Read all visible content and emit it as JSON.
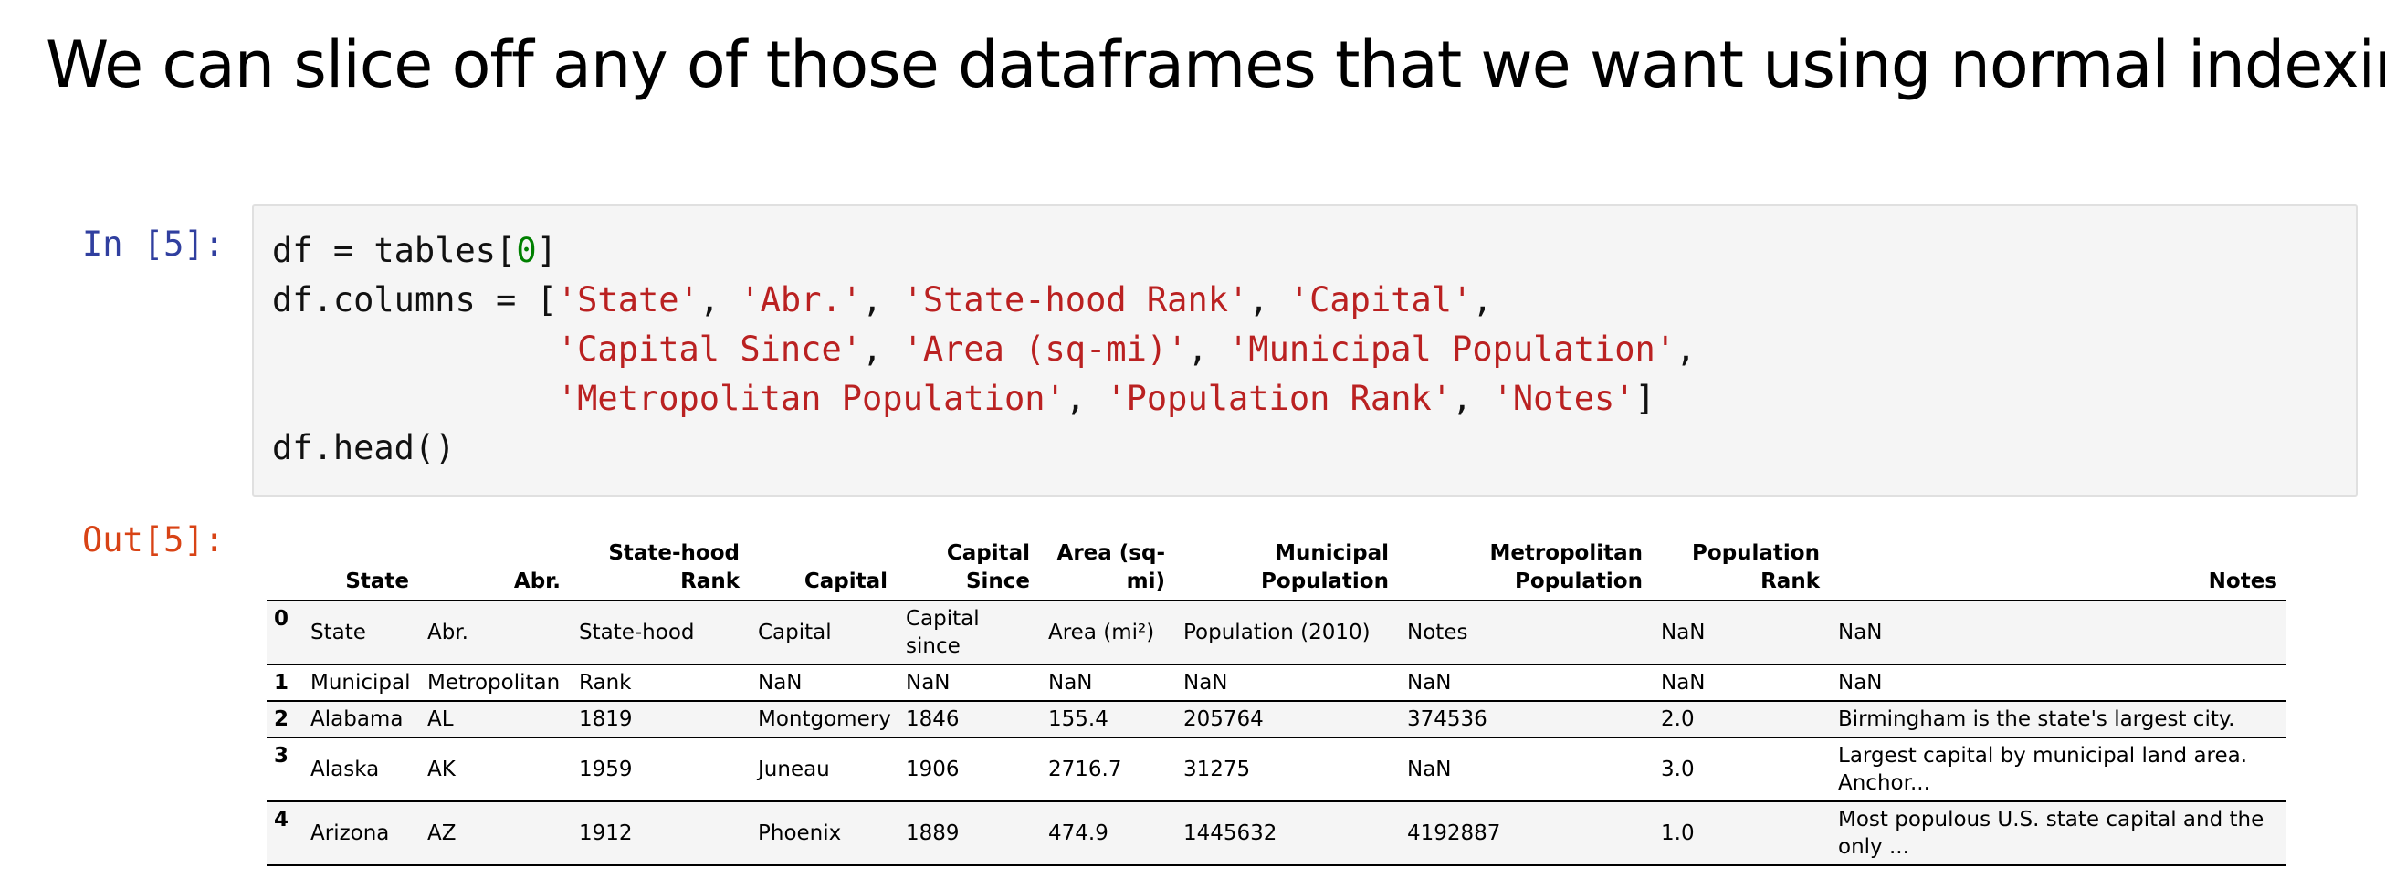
{
  "heading": "We can slice off any of those dataframes that we want using normal indexing.",
  "input_prompt": "In [5]:",
  "output_prompt": "Out[5]:",
  "code": {
    "line1_a": "df = tables[",
    "line1_num": "0",
    "line1_b": "]",
    "line2_a": "df.columns = [",
    "s_state": "'State'",
    "s_abr": "'Abr.'",
    "s_statehood": "'State-hood Rank'",
    "s_capital": "'Capital'",
    "s_capsince": "'Capital Since'",
    "s_area": "'Area (sq-mi)'",
    "s_munpop": "'Municipal Population'",
    "s_metpop": "'Metropolitan Population'",
    "s_poprank": "'Population Rank'",
    "s_notes": "'Notes'",
    "comma": ", ",
    "close": "]",
    "line5": "df.head()"
  },
  "table": {
    "headers": [
      "",
      "State",
      "Abr.",
      "State-hood Rank",
      "Capital",
      "Capital Since",
      "Area (sq-mi)",
      "Municipal Population",
      "Metropolitan Population",
      "Population Rank",
      "Notes"
    ],
    "rows": [
      [
        "0",
        "State",
        "Abr.",
        "State-hood",
        "Capital",
        "Capital since",
        "Area (mi²)",
        "Population (2010)",
        "Notes",
        "NaN",
        "NaN"
      ],
      [
        "1",
        "Municipal",
        "Metropolitan",
        "Rank",
        "NaN",
        "NaN",
        "NaN",
        "NaN",
        "NaN",
        "NaN",
        "NaN"
      ],
      [
        "2",
        "Alabama",
        "AL",
        "1819",
        "Montgomery",
        "1846",
        "155.4",
        "205764",
        "374536",
        "2.0",
        "Birmingham is the state's largest city."
      ],
      [
        "3",
        "Alaska",
        "AK",
        "1959",
        "Juneau",
        "1906",
        "2716.7",
        "31275",
        "NaN",
        "3.0",
        "Largest capital by municipal land area. Anchor..."
      ],
      [
        "4",
        "Arizona",
        "AZ",
        "1912",
        "Phoenix",
        "1889",
        "474.9",
        "1445632",
        "4192887",
        "1.0",
        "Most populous U.S. state capital and the only ..."
      ]
    ]
  }
}
